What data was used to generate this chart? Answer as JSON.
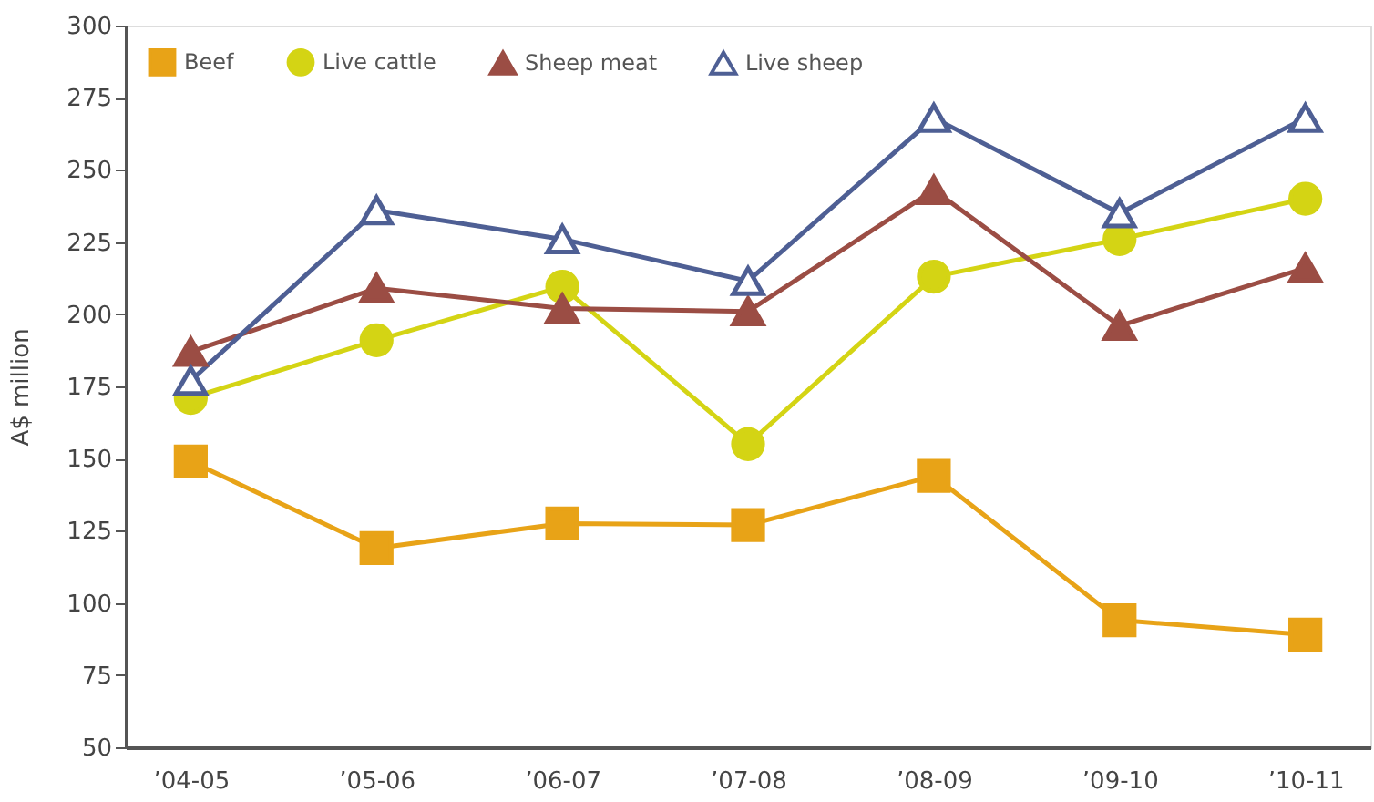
{
  "chart_data": {
    "type": "line",
    "ylabel": "A$ million",
    "categories": [
      "’04-05",
      "’05-06",
      "’06-07",
      "’07-08",
      "’08-09",
      "’09-10",
      "’10-11"
    ],
    "series": [
      {
        "name": "Beef",
        "color": "#e8a317",
        "marker": "square",
        "values": [
          149,
          119,
          127.5,
          127,
          144,
          94,
          89
        ]
      },
      {
        "name": "Live cattle",
        "color": "#d4d414",
        "marker": "circle",
        "values": [
          171,
          191,
          209.5,
          155,
          213,
          226,
          240
        ]
      },
      {
        "name": "Sheep meat",
        "color": "#9b4d44",
        "marker": "triangle",
        "values": [
          187,
          209,
          202,
          201,
          243,
          196,
          216
        ]
      },
      {
        "name": "Live sheep",
        "color": "#4e5f94",
        "marker": "triangle-open",
        "values": [
          177,
          236,
          226,
          211.5,
          268,
          235,
          268
        ]
      }
    ],
    "ylim": [
      50,
      300
    ],
    "yticks": [
      50,
      75,
      100,
      125,
      150,
      175,
      200,
      225,
      250,
      275,
      300
    ],
    "grid": false,
    "legend": "top left",
    "line_style": "solid"
  }
}
